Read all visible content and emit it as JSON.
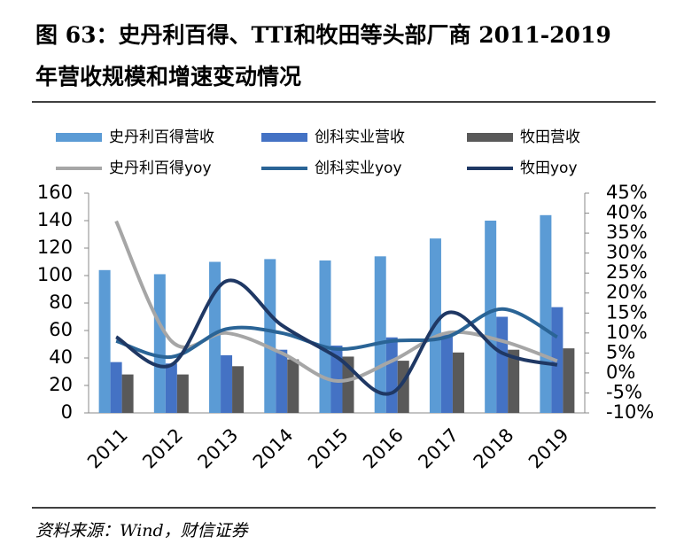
{
  "title": [
    "图 63：史丹利百得、TTI和牧田等头部厂商 2011-2019",
    "年营收规模和增速变动情况"
  ],
  "source": "资料来源：Wind，财信证券",
  "chart_data": {
    "type": "bar-line",
    "categories": [
      "2011",
      "2012",
      "2013",
      "2014",
      "2015",
      "2016",
      "2017",
      "2018",
      "2019"
    ],
    "series": [
      {
        "name": "史丹利百得营收",
        "type": "bar",
        "color": "#5b9bd5",
        "values": [
          104,
          101,
          110,
          112,
          111,
          114,
          127,
          140,
          144
        ]
      },
      {
        "name": "创科实业营收",
        "type": "bar",
        "color": "#4472c4",
        "values": [
          37,
          36,
          42,
          46,
          49,
          55,
          57,
          70,
          77
        ]
      },
      {
        "name": "牧田营收",
        "type": "bar",
        "color": "#595959",
        "values": [
          28,
          28,
          34,
          39,
          41,
          38,
          44,
          46,
          47
        ]
      },
      {
        "name": "史丹利百得yoy",
        "type": "line",
        "axis": "y2",
        "color": "#a6a6a6",
        "values": [
          38,
          8,
          10,
          5,
          -2,
          3,
          10,
          8,
          3
        ]
      },
      {
        "name": "创科实业yoy",
        "type": "line",
        "axis": "y2",
        "color": "#2a6496",
        "values": [
          8,
          4,
          11,
          10,
          6,
          8,
          9,
          16,
          9
        ]
      },
      {
        "name": "牧田yoy",
        "type": "line",
        "axis": "y2",
        "color": "#1f3864",
        "values": [
          9,
          2,
          23,
          12,
          4,
          -5,
          15,
          5,
          2
        ]
      }
    ],
    "ylim": [
      0,
      160
    ],
    "yticks": [
      0,
      20,
      40,
      60,
      80,
      100,
      120,
      140,
      160
    ],
    "y2lim": [
      -10,
      45
    ],
    "y2ticks": [
      {
        "value": -10,
        "label": "-10%"
      },
      {
        "value": -5,
        "label": "-5%"
      },
      {
        "value": 0,
        "label": "0%"
      },
      {
        "value": 5,
        "label": "5%"
      },
      {
        "value": 10,
        "label": "10%"
      },
      {
        "value": 15,
        "label": "15%"
      },
      {
        "value": 20,
        "label": "20%"
      },
      {
        "value": 25,
        "label": "25%"
      },
      {
        "value": 30,
        "label": "30%"
      },
      {
        "value": 35,
        "label": "35%"
      },
      {
        "value": 40,
        "label": "40%"
      },
      {
        "value": 45,
        "label": "45%"
      }
    ]
  }
}
